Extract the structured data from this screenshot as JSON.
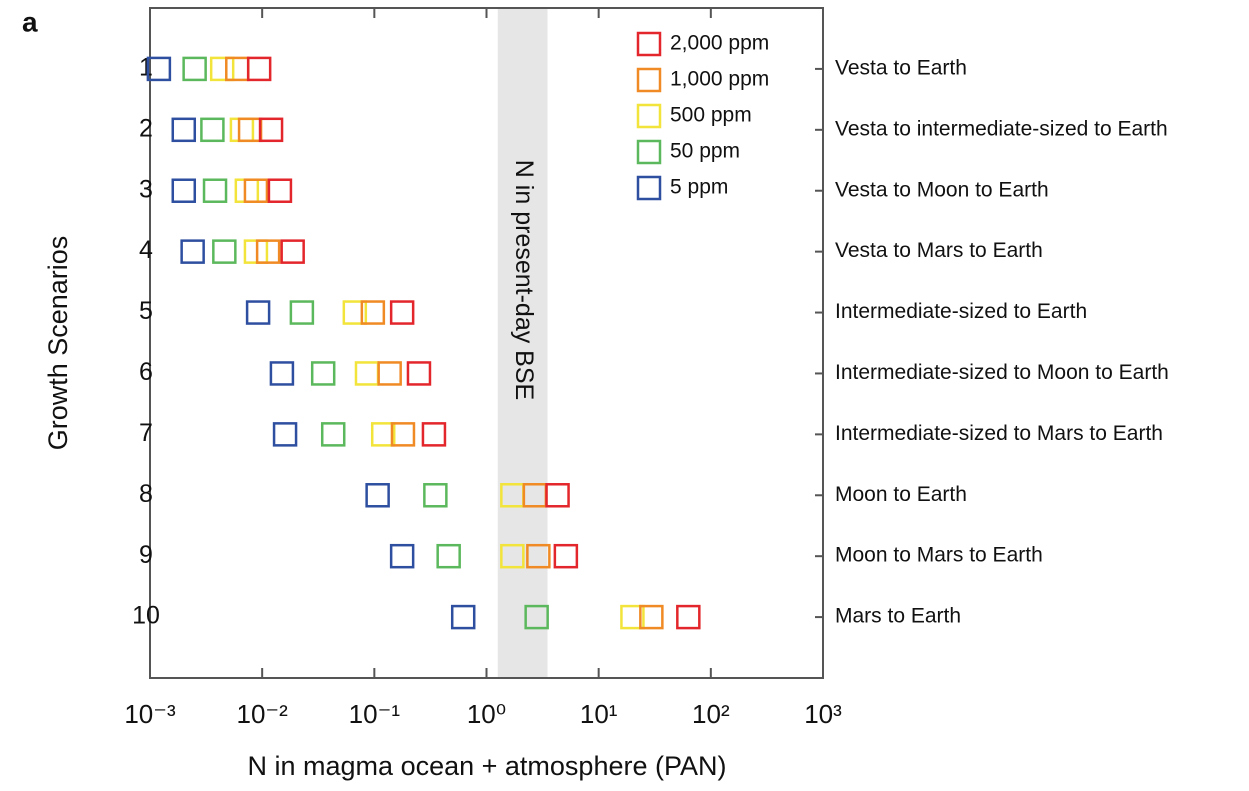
{
  "chart_data": {
    "type": "scatter",
    "panel_label": "a",
    "ylabel": "Growth Scenarios",
    "xlabel": "N in magma ocean + atmosphere (PAN)",
    "band_label": "N in present-day BSE",
    "band": [
      1.26,
      3.5
    ],
    "band_color": "#e6e6e6",
    "categories": [
      "1",
      "2",
      "3",
      "4",
      "5",
      "6",
      "7",
      "8",
      "9",
      "10"
    ],
    "scenario_names": [
      "Vesta to Earth",
      "Vesta to intermediate-sized to Earth",
      "Vesta to Moon to Earth",
      "Vesta to Mars to Earth",
      "Intermediate-sized to Earth",
      "Intermediate-sized to Moon to Earth",
      "Intermediate-sized to Mars to Earth",
      "Moon to Earth",
      "Moon to Mars to Earth",
      "Mars to Earth"
    ],
    "xscale": "log",
    "xlim": [
      0.001,
      1000
    ],
    "xticks": [
      {
        "value": 0.001,
        "label": "10⁻³"
      },
      {
        "value": 0.01,
        "label": "10⁻²"
      },
      {
        "value": 0.1,
        "label": "10⁻¹"
      },
      {
        "value": 1,
        "label": "10⁰"
      },
      {
        "value": 10,
        "label": "10¹"
      },
      {
        "value": 100,
        "label": "10²"
      },
      {
        "value": 1000,
        "label": "10³"
      }
    ],
    "legend": "upper right",
    "series": [
      {
        "name": "2,000 ppm",
        "color": "#e3262b",
        "values": [
          0.0094,
          0.012,
          0.0144,
          0.0187,
          0.177,
          0.25,
          0.34,
          4.3,
          5.1,
          63
        ]
      },
      {
        "name": "1,000 ppm",
        "color": "#f08a24",
        "values": [
          0.006,
          0.0078,
          0.0088,
          0.0113,
          0.097,
          0.137,
          0.18,
          2.7,
          2.9,
          29.5
        ]
      },
      {
        "name": "500 ppm",
        "color": "#f2e43a",
        "values": [
          0.0044,
          0.0066,
          0.0073,
          0.0088,
          0.067,
          0.086,
          0.12,
          1.7,
          1.7,
          20
        ]
      },
      {
        "name": "50 ppm",
        "color": "#5cb85c",
        "values": [
          0.0025,
          0.0036,
          0.0038,
          0.0046,
          0.0226,
          0.035,
          0.043,
          0.35,
          0.46,
          2.8
        ]
      },
      {
        "name": "5 ppm",
        "color": "#2e4fa0",
        "values": [
          0.0012,
          0.002,
          0.002,
          0.0024,
          0.0092,
          0.015,
          0.016,
          0.107,
          0.177,
          0.62
        ]
      }
    ]
  }
}
